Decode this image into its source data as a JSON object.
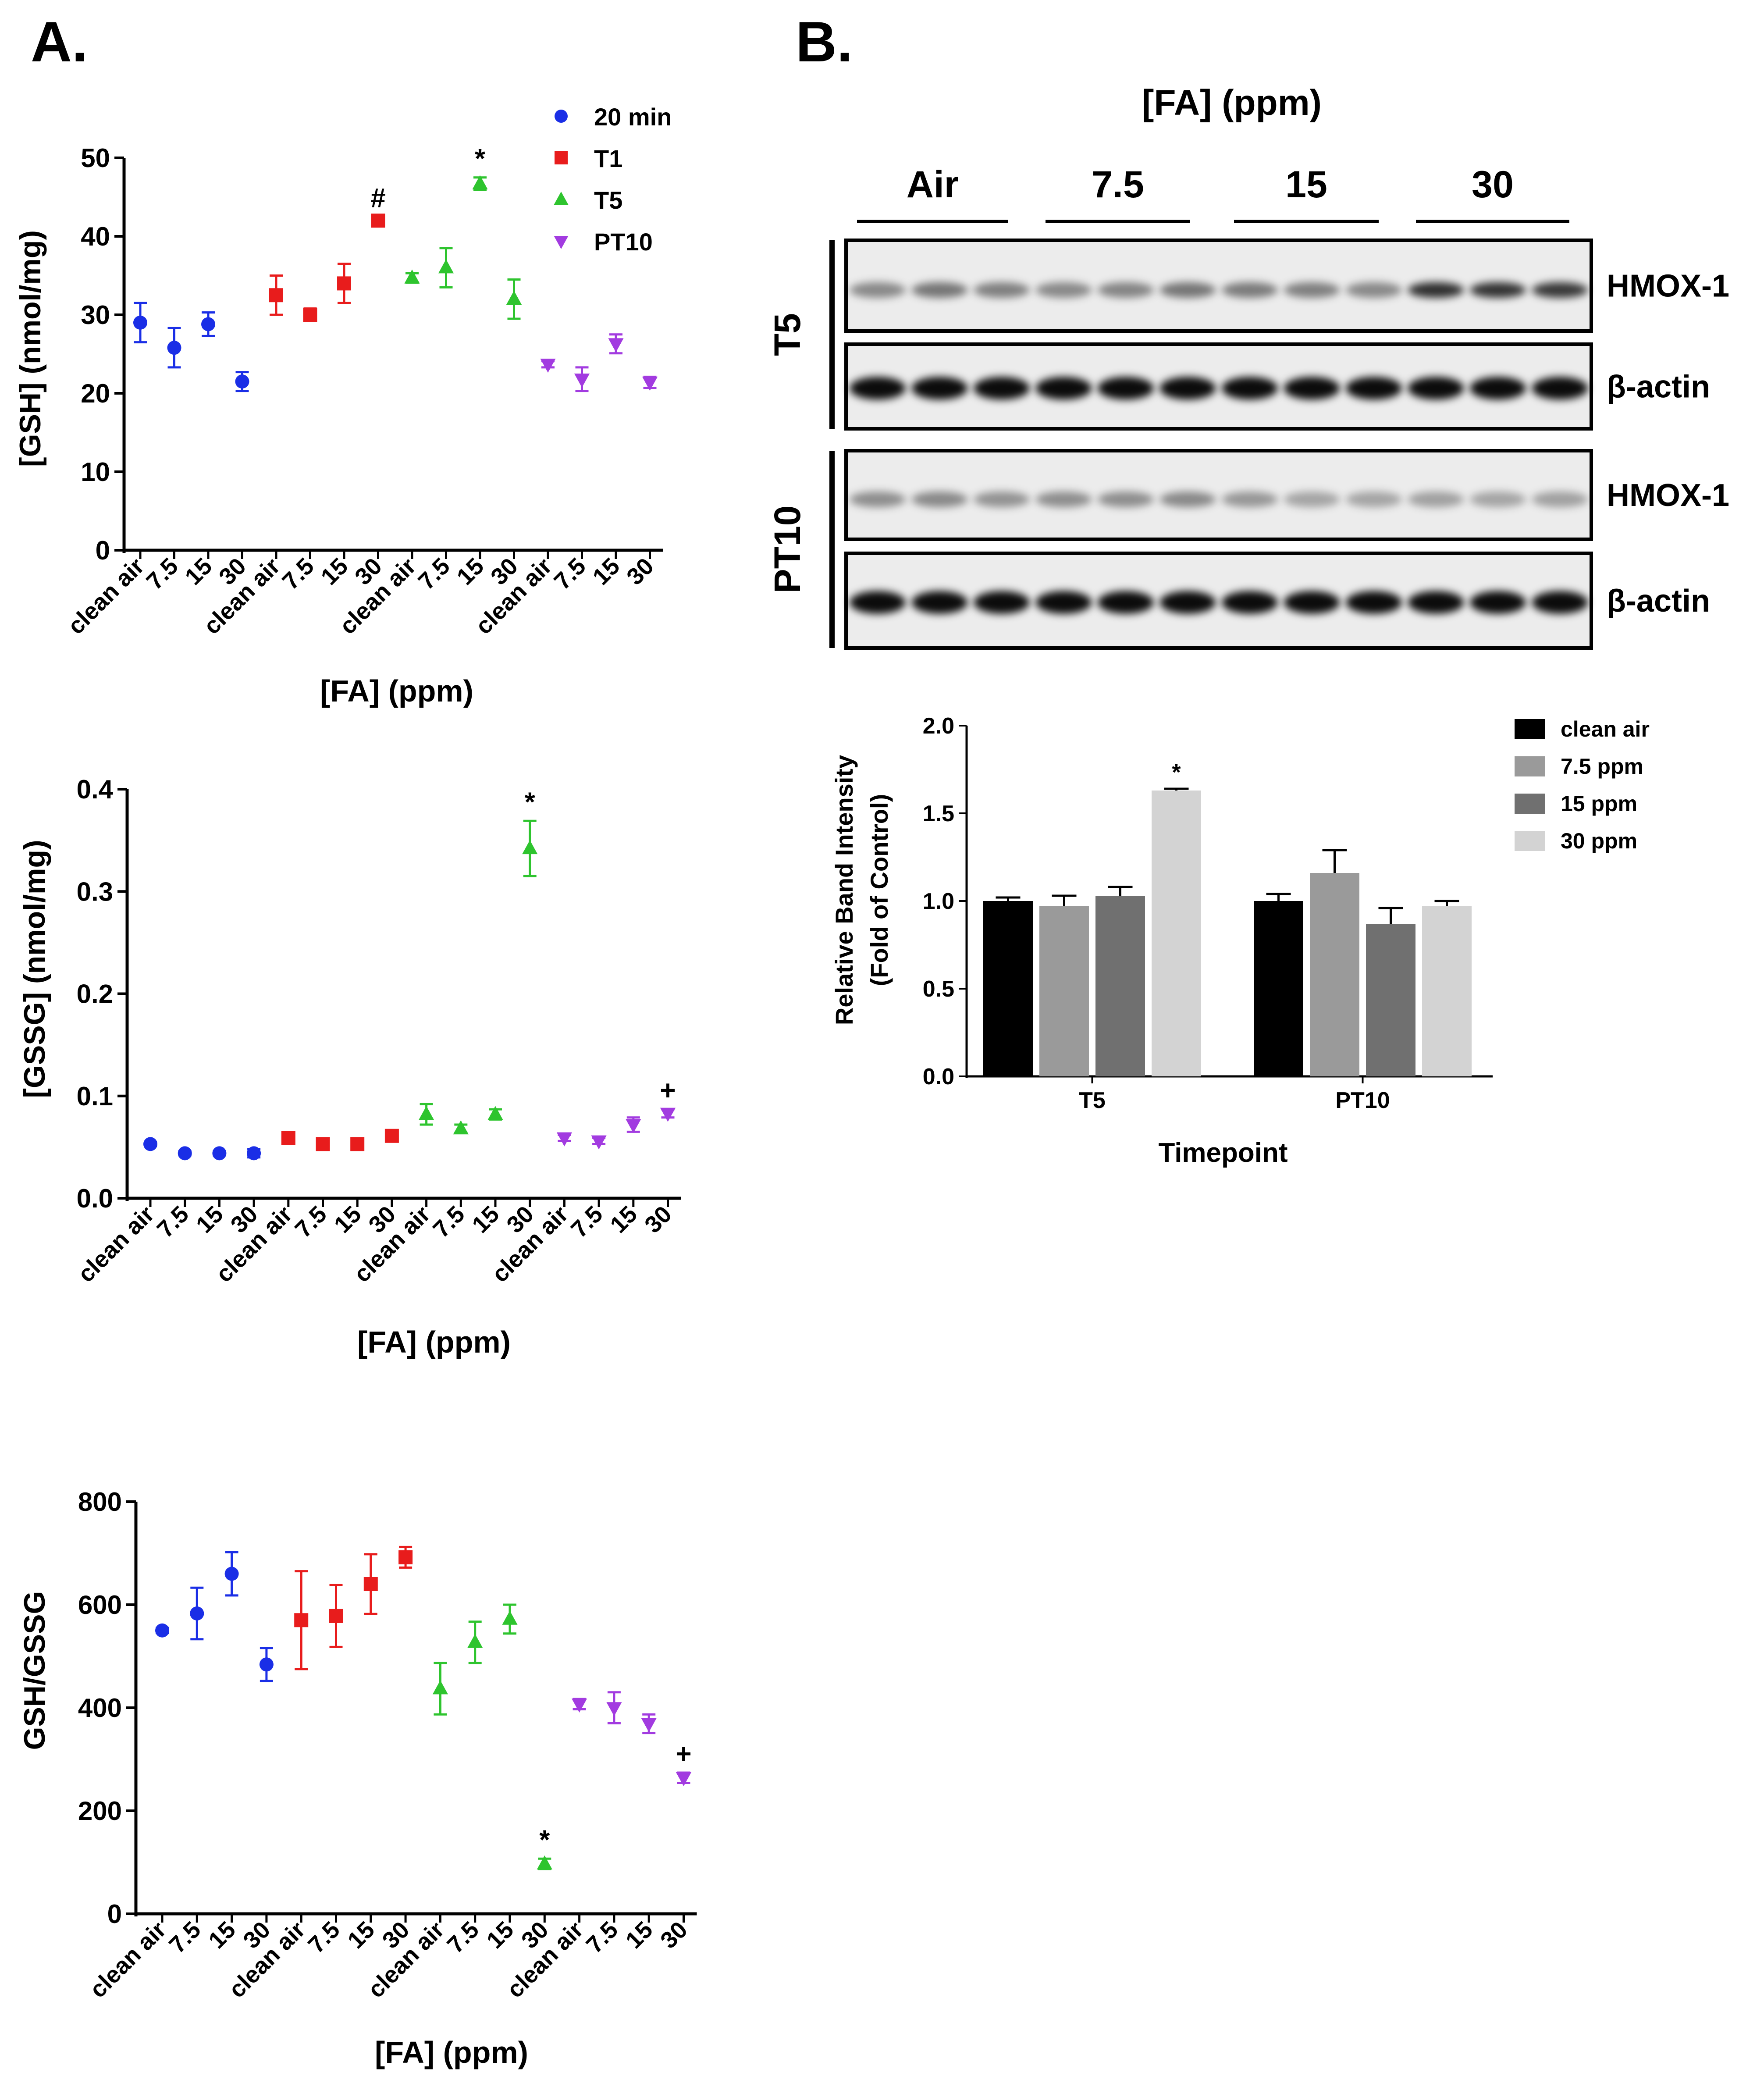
{
  "panel_labels": {
    "a": "A.",
    "b": "B."
  },
  "colors": {
    "c20min": "#1a2ee6",
    "cT1": "#e81c1c",
    "cT5": "#2ec42e",
    "cPT10": "#a23be0"
  },
  "chart_data": [
    {
      "id": "gsh",
      "type": "scatter",
      "ylabel": "[GSH] (nmol/mg)",
      "xlabel": "[FA] (ppm)",
      "ylim": [
        0,
        50
      ],
      "yticks": [
        "0",
        "10",
        "20",
        "30",
        "40",
        "50"
      ],
      "tick_labels": [
        "clean air",
        "7.5",
        "15",
        "30"
      ],
      "legend": [
        "20 min",
        "T1",
        "T5",
        "PT10"
      ],
      "series": [
        {
          "name": "20 min",
          "marker": "circle",
          "values": [
            29,
            25.8,
            28.8,
            21.5
          ],
          "errors": [
            2.5,
            2.5,
            1.5,
            1.2
          ],
          "annotations": [
            "",
            "",
            "",
            ""
          ]
        },
        {
          "name": "T1",
          "marker": "square",
          "values": [
            32.5,
            30,
            34,
            42
          ],
          "errors": [
            2.5,
            0.8,
            2.5,
            0.5
          ],
          "annotations": [
            "",
            "",
            "",
            "#"
          ]
        },
        {
          "name": "T5",
          "marker": "triangle",
          "values": [
            34.7,
            36,
            46.7,
            32
          ],
          "errors": [
            0.6,
            2.5,
            0.8,
            2.5
          ],
          "annotations": [
            "",
            "",
            "*",
            ""
          ]
        },
        {
          "name": "PT10",
          "marker": "triangle-down",
          "values": [
            23.7,
            21.8,
            26.3,
            21.4
          ],
          "errors": [
            0.4,
            1.5,
            1.2,
            0.7
          ],
          "annotations": [
            "",
            "",
            "",
            ""
          ]
        }
      ]
    },
    {
      "id": "gssg",
      "type": "scatter",
      "ylabel": "[GSSG] (nmol/mg)",
      "xlabel": "[FA] (ppm)",
      "ylim": [
        0,
        0.4
      ],
      "yticks": [
        "0.0",
        "0.1",
        "0.2",
        "0.3",
        "0.4"
      ],
      "tick_labels": [
        "clean air",
        "7.5",
        "15",
        "30"
      ],
      "series": [
        {
          "name": "20 min",
          "marker": "circle",
          "values": [
            0.053,
            0.044,
            0.044,
            0.044
          ],
          "errors": [
            0.002,
            0.002,
            0.002,
            0.004
          ],
          "annotations": [
            "",
            "",
            "",
            ""
          ]
        },
        {
          "name": "T1",
          "marker": "square",
          "values": [
            0.059,
            0.053,
            0.053,
            0.061
          ],
          "errors": [
            0.002,
            0.002,
            0.002,
            0.003
          ],
          "annotations": [
            "",
            "",
            "",
            ""
          ]
        },
        {
          "name": "T5",
          "marker": "triangle",
          "values": [
            0.082,
            0.068,
            0.082,
            0.342
          ],
          "errors": [
            0.01,
            0.004,
            0.005,
            0.027
          ],
          "annotations": [
            "",
            "",
            "",
            "*"
          ]
        },
        {
          "name": "PT10",
          "marker": "triangle-down",
          "values": [
            0.059,
            0.056,
            0.072,
            0.083
          ],
          "errors": [
            0.003,
            0.003,
            0.007,
            0.004
          ],
          "annotations": [
            "",
            "",
            "",
            "+"
          ]
        }
      ]
    },
    {
      "id": "ratio",
      "type": "scatter",
      "ylabel": "GSH/GSSG",
      "xlabel": "[FA] (ppm)",
      "ylim": [
        0,
        800
      ],
      "yticks": [
        "0",
        "200",
        "400",
        "600",
        "800"
      ],
      "tick_labels": [
        "clean air",
        "7.5",
        "15",
        "30"
      ],
      "series": [
        {
          "name": "20 min",
          "marker": "circle",
          "values": [
            550,
            583,
            660,
            484
          ],
          "errors": [
            5,
            50,
            42,
            32
          ],
          "annotations": [
            "",
            "",
            "",
            ""
          ]
        },
        {
          "name": "T1",
          "marker": "square",
          "values": [
            570,
            578,
            640,
            692
          ],
          "errors": [
            95,
            60,
            58,
            20
          ],
          "annotations": [
            "",
            "",
            "",
            ""
          ]
        },
        {
          "name": "T5",
          "marker": "triangle",
          "values": [
            437,
            527,
            572,
            97
          ],
          "errors": [
            50,
            40,
            28,
            10
          ],
          "annotations": [
            "",
            "",
            "",
            "*"
          ]
        },
        {
          "name": "PT10",
          "marker": "triangle-down",
          "values": [
            407,
            400,
            369,
            264
          ],
          "errors": [
            10,
            30,
            18,
            10
          ],
          "annotations": [
            "",
            "",
            "",
            "+"
          ]
        }
      ]
    },
    {
      "id": "bands",
      "type": "bar",
      "ylabel_lines": [
        "Relative Band Intensity",
        "(Fold of Control)"
      ],
      "xlabel": "Timepoint",
      "categories": [
        "T5",
        "PT10"
      ],
      "ylim": [
        0,
        2.0
      ],
      "yticks": [
        "0.0",
        "0.5",
        "1.0",
        "1.5",
        "2.0"
      ],
      "series": [
        {
          "name": "clean air",
          "color": "#000000",
          "values": [
            1.0,
            1.0
          ],
          "errors": [
            0.02,
            0.04
          ],
          "annotations": [
            "",
            ""
          ]
        },
        {
          "name": "7.5 ppm",
          "color": "#9a9a9a",
          "values": [
            0.97,
            1.16
          ],
          "errors": [
            0.06,
            0.13
          ],
          "annotations": [
            "",
            ""
          ]
        },
        {
          "name": "15 ppm",
          "color": "#707070",
          "values": [
            1.03,
            0.87
          ],
          "errors": [
            0.05,
            0.09
          ],
          "annotations": [
            "",
            ""
          ]
        },
        {
          "name": "30 ppm",
          "color": "#d3d3d3",
          "values": [
            1.63,
            0.97
          ],
          "errors": [
            0.01,
            0.03
          ],
          "annotations": [
            "*",
            ""
          ]
        }
      ]
    }
  ],
  "blot": {
    "title": "[FA] (ppm)",
    "groups": [
      "Air",
      "7.5",
      "15",
      "30"
    ],
    "timepoints": [
      "T5",
      "PT10"
    ],
    "rows": [
      {
        "label": "HMOX-1",
        "intensity": [
          0.42,
          0.5,
          0.46,
          0.42,
          0.44,
          0.5,
          0.48,
          0.46,
          0.42,
          0.8,
          0.78,
          0.76
        ]
      },
      {
        "label": "β-actin",
        "intensity": [
          0.95,
          0.95,
          0.95,
          0.95,
          0.95,
          0.95,
          0.95,
          0.95,
          0.95,
          0.95,
          0.95,
          0.95
        ]
      },
      {
        "label": "HMOX-1",
        "intensity": [
          0.4,
          0.42,
          0.38,
          0.4,
          0.4,
          0.42,
          0.36,
          0.3,
          0.3,
          0.32,
          0.3,
          0.32
        ]
      },
      {
        "label": "β-actin",
        "intensity": [
          0.95,
          0.95,
          0.95,
          0.95,
          0.95,
          0.95,
          0.95,
          0.95,
          0.95,
          0.95,
          0.95,
          0.95
        ]
      }
    ]
  }
}
